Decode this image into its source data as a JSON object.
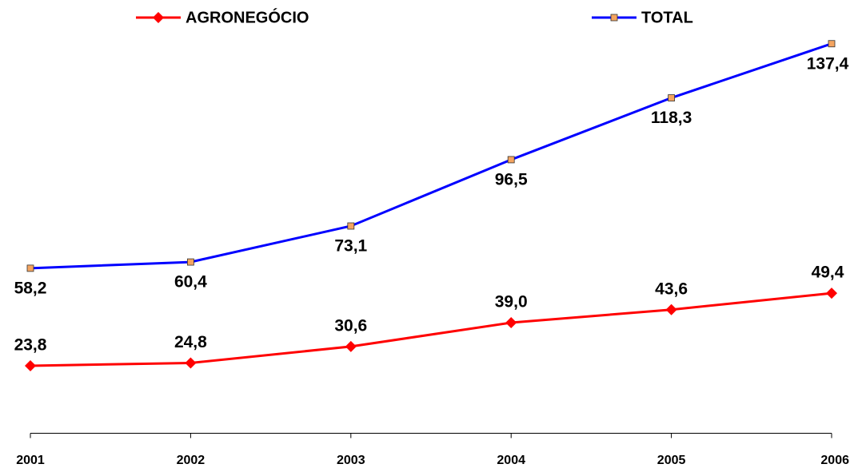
{
  "chart_data": {
    "type": "line",
    "categories": [
      "2001",
      "2002",
      "2003",
      "2004",
      "2005",
      "2006"
    ],
    "series": [
      {
        "name": "AGRONEGÓCIO",
        "color": "#ff0000",
        "marker": "diamond",
        "label_position": "above",
        "values": [
          23.8,
          24.8,
          30.6,
          39.0,
          43.6,
          49.4
        ],
        "value_labels": [
          "23,8",
          "24,8",
          "30,6",
          "39,0",
          "43,6",
          "49,4"
        ]
      },
      {
        "name": "TOTAL",
        "color": "#0000ff",
        "marker": "square",
        "marker_color": "#f4a460",
        "label_position": "below",
        "values": [
          58.2,
          60.4,
          73.1,
          96.5,
          118.3,
          137.4
        ],
        "value_labels": [
          "58,2",
          "60,4",
          "73,1",
          "96,5",
          "118,3",
          "137,4"
        ]
      }
    ],
    "ylim": [
      0,
      150
    ],
    "grid": false
  }
}
